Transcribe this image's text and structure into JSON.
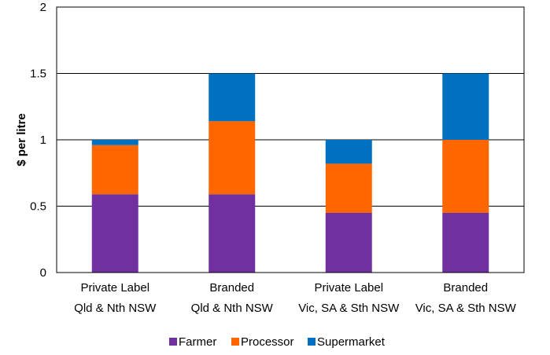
{
  "chart_data": {
    "type": "bar",
    "stacked": true,
    "categories": [
      [
        "Private Label",
        "Qld & Nth NSW"
      ],
      [
        "Branded",
        "Qld & Nth NSW"
      ],
      [
        "Private Label",
        "Vic, SA & Sth NSW"
      ],
      [
        "Branded",
        "Vic, SA & Sth NSW"
      ]
    ],
    "series": [
      {
        "name": "Farmer",
        "color": "#7030a0",
        "values": [
          0.59,
          0.59,
          0.45,
          0.45
        ]
      },
      {
        "name": "Processor",
        "color": "#ff6600",
        "values": [
          0.37,
          0.55,
          0.37,
          0.55
        ]
      },
      {
        "name": "Supermarket",
        "color": "#0070c0",
        "values": [
          0.04,
          0.36,
          0.18,
          0.5
        ]
      }
    ],
    "xlabel": "",
    "ylabel": "$ per litre",
    "ylim": [
      0,
      2
    ],
    "yticks": [
      0,
      0.5,
      1,
      1.5,
      2
    ],
    "ytick_labels": [
      "0",
      "0.5",
      "1",
      "1.5",
      "2"
    ],
    "grid": true,
    "legend": "bottom"
  }
}
